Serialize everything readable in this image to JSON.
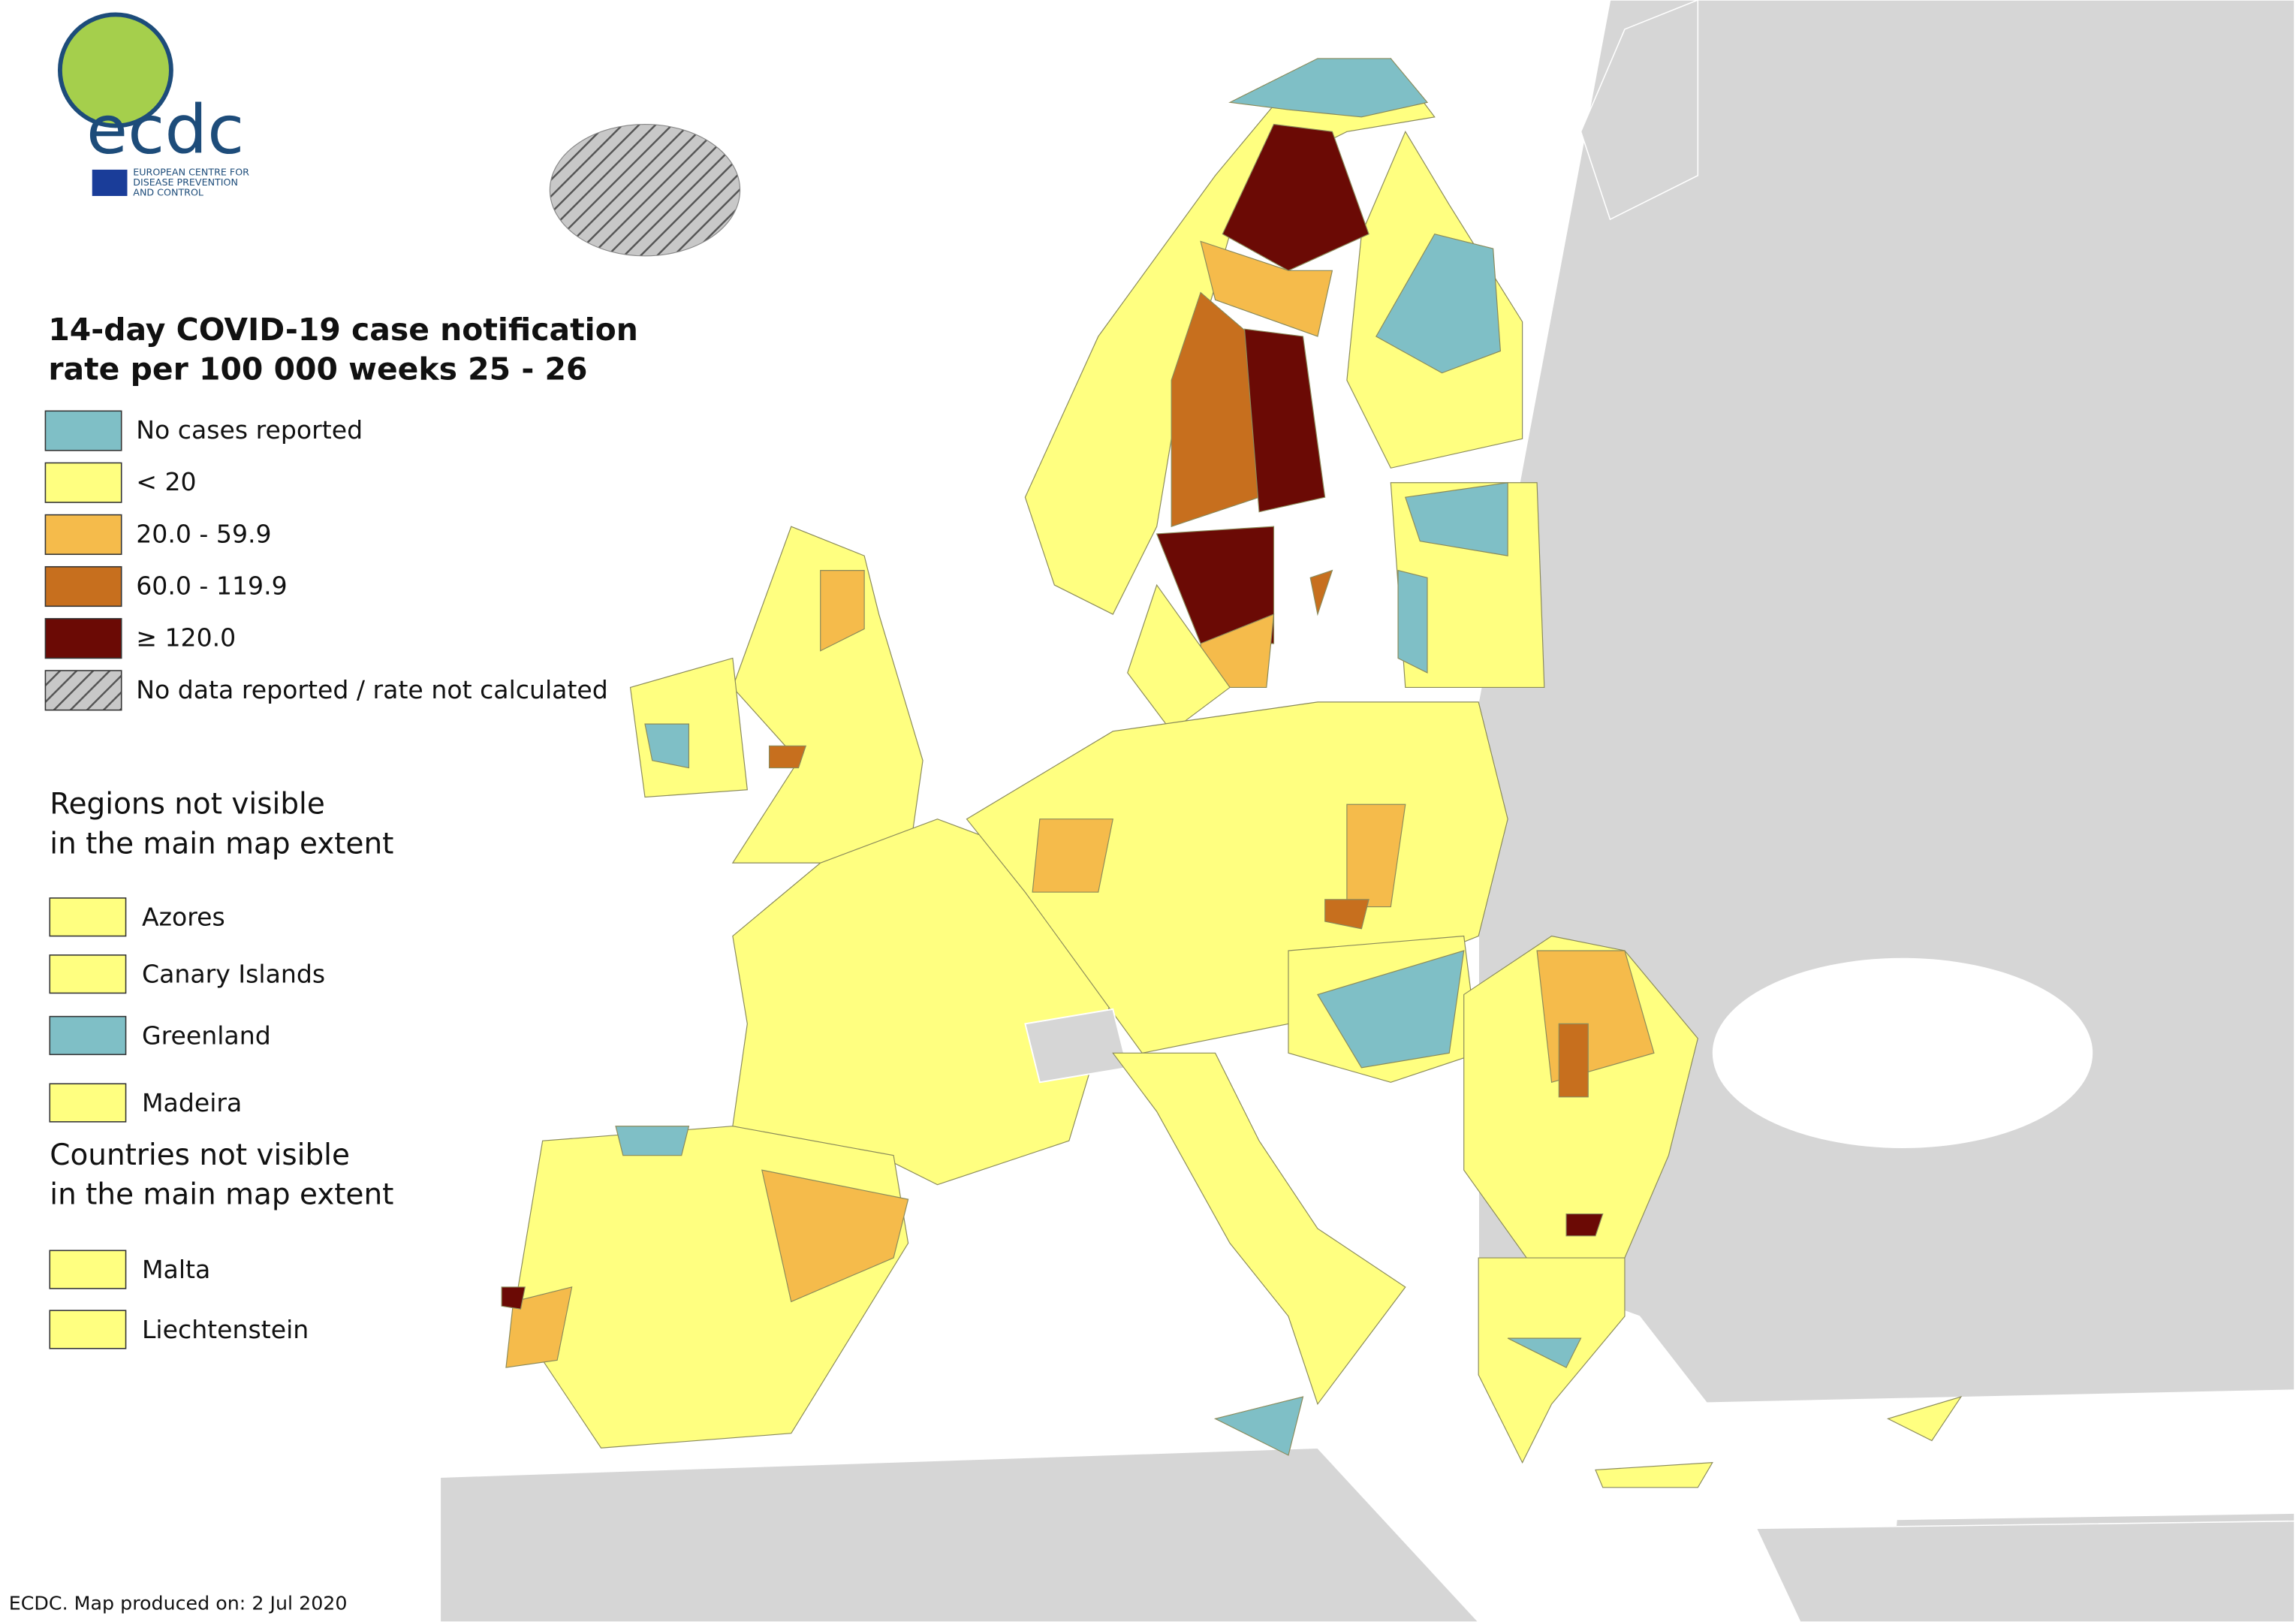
{
  "logo": {
    "name": "ecdc",
    "subtitle": [
      "EUROPEAN CENTRE FOR",
      "DISEASE PREVENTION",
      "AND CONTROL"
    ]
  },
  "title": [
    "14-day COVID-19 case notification",
    "rate per 100 000 weeks 25 - 26"
  ],
  "legend": [
    {
      "label": "No cases reported",
      "color": "#7fbfc6"
    },
    {
      "label": "< 20",
      "color": "#ffff80"
    },
    {
      "label": "20.0 - 59.9",
      "color": "#f5bb4b"
    },
    {
      "label": "60.0 - 119.9",
      "color": "#c76f1e"
    },
    {
      "label": "≥ 120.0",
      "color": "#6b0a05"
    },
    {
      "label": "No data reported / rate not calculated",
      "color": "#b8b8b8",
      "pattern": "hatch"
    }
  ],
  "regions": {
    "heading": [
      "Regions not visible",
      "in the main map extent"
    ],
    "items": [
      {
        "label": "Azores",
        "color": "#ffff80"
      },
      {
        "label": "Canary Islands",
        "color": "#ffff80"
      },
      {
        "label": "Greenland",
        "color": "#7fbfc6"
      },
      {
        "label": "Madeira",
        "color": "#ffff80"
      }
    ]
  },
  "countries": {
    "heading": [
      "Countries not visible",
      "in the main map extent"
    ],
    "items": [
      {
        "label": "Malta",
        "color": "#ffff80"
      },
      {
        "label": "Liechtenstein",
        "color": "#ffff80"
      }
    ]
  },
  "footer": "ECDC. Map produced on: 2 Jul 2020"
}
